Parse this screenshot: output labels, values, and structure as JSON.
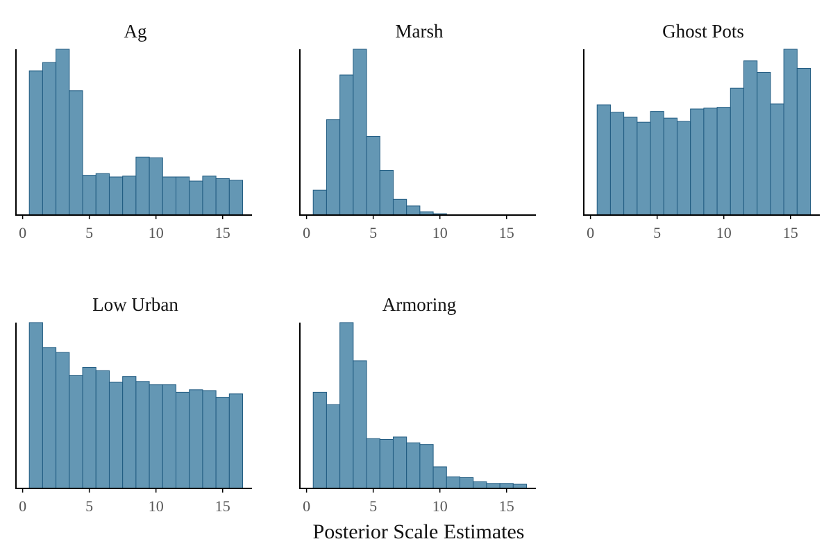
{
  "colors": {
    "bar_fill": "#6497b4",
    "bar_stroke": "#1f5a80"
  },
  "x_label": "Posterior Scale Estimates",
  "chart_data": [
    {
      "type": "bar",
      "title": "Ag",
      "bin_width": 1,
      "bin_starts": [
        0.5,
        1.5,
        2.5,
        3.5,
        4.5,
        5.5,
        6.5,
        7.5,
        8.5,
        9.5,
        10.5,
        11.5,
        12.5,
        13.5,
        14.5,
        15.5
      ],
      "values": [
        0.87,
        0.92,
        1.0,
        0.75,
        0.24,
        0.25,
        0.23,
        0.235,
        0.35,
        0.345,
        0.23,
        0.23,
        0.205,
        0.235,
        0.22,
        0.21
      ],
      "xlim": [
        -0.5,
        17.2
      ],
      "ylim": [
        0,
        1.0
      ],
      "xticks": [
        0,
        5,
        10,
        15
      ]
    },
    {
      "type": "bar",
      "title": "Marsh",
      "bin_width": 1,
      "bin_starts": [
        0.5,
        1.5,
        2.5,
        3.5,
        4.5,
        5.5,
        6.5,
        7.5,
        8.5,
        9.5,
        10.5,
        11.5,
        12.5,
        13.5,
        14.5,
        15.5
      ],
      "values": [
        0.15,
        0.575,
        0.845,
        1.0,
        0.475,
        0.27,
        0.095,
        0.055,
        0.02,
        0.008,
        0.002,
        0.001,
        0.0005,
        0.0005,
        0.0005,
        0.0005
      ],
      "xlim": [
        -0.5,
        17.2
      ],
      "ylim": [
        0,
        1.0
      ],
      "xticks": [
        0,
        5,
        10,
        15
      ]
    },
    {
      "type": "bar",
      "title": "Ghost Pots",
      "bin_width": 1,
      "bin_starts": [
        0.5,
        1.5,
        2.5,
        3.5,
        4.5,
        5.5,
        6.5,
        7.5,
        8.5,
        9.5,
        10.5,
        11.5,
        12.5,
        13.5,
        14.5,
        15.5
      ],
      "values": [
        0.665,
        0.62,
        0.59,
        0.56,
        0.625,
        0.585,
        0.565,
        0.64,
        0.645,
        0.65,
        0.765,
        0.93,
        0.86,
        0.67,
        1.0,
        0.885
      ],
      "xlim": [
        -0.5,
        17.2
      ],
      "ylim": [
        0,
        1.0
      ],
      "xticks": [
        0,
        5,
        10,
        15
      ]
    },
    {
      "type": "bar",
      "title": "Low Urban",
      "bin_width": 1,
      "bin_starts": [
        0.5,
        1.5,
        2.5,
        3.5,
        4.5,
        5.5,
        6.5,
        7.5,
        8.5,
        9.5,
        10.5,
        11.5,
        12.5,
        13.5,
        14.5,
        15.5
      ],
      "values": [
        1.0,
        0.85,
        0.82,
        0.68,
        0.73,
        0.71,
        0.64,
        0.675,
        0.645,
        0.625,
        0.625,
        0.58,
        0.595,
        0.59,
        0.55,
        0.57
      ],
      "xlim": [
        -0.5,
        17.2
      ],
      "ylim": [
        0,
        1.0
      ],
      "xticks": [
        0,
        5,
        10,
        15
      ]
    },
    {
      "type": "bar",
      "title": "Armoring",
      "bin_width": 1,
      "bin_starts": [
        0.5,
        1.5,
        2.5,
        3.5,
        4.5,
        5.5,
        6.5,
        7.5,
        8.5,
        9.5,
        10.5,
        11.5,
        12.5,
        13.5,
        14.5,
        15.5
      ],
      "values": [
        0.58,
        0.505,
        1.0,
        0.77,
        0.3,
        0.295,
        0.31,
        0.275,
        0.265,
        0.13,
        0.07,
        0.065,
        0.04,
        0.03,
        0.03,
        0.025
      ],
      "xlim": [
        -0.5,
        17.2
      ],
      "ylim": [
        0,
        1.0
      ],
      "xticks": [
        0,
        5,
        10,
        15
      ]
    }
  ]
}
